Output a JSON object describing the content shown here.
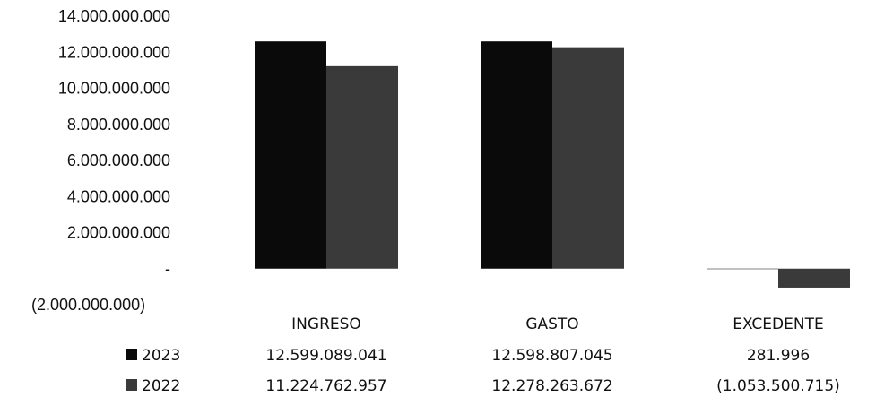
{
  "chart_data": {
    "type": "bar",
    "categories": [
      "INGRESO",
      "GASTO",
      "EXCEDENTE"
    ],
    "series": [
      {
        "name": "2023",
        "values": [
          12599089041,
          12598807045,
          281996
        ],
        "labels": [
          "12.599.089.041",
          "12.598.807.045",
          "281.996"
        ],
        "color": "#0a0a0a"
      },
      {
        "name": "2022",
        "values": [
          11224762957,
          12278263672,
          -1053500715
        ],
        "labels": [
          "11.224.762.957",
          "12.278.263.672",
          "(1.053.500.715)"
        ],
        "color": "#3a3a3a"
      }
    ],
    "y_ticks": [
      {
        "value": 14000000000,
        "label": "14.000.000.000"
      },
      {
        "value": 12000000000,
        "label": "12.000.000.000"
      },
      {
        "value": 10000000000,
        "label": "10.000.000.000"
      },
      {
        "value": 8000000000,
        "label": "8.000.000.000"
      },
      {
        "value": 6000000000,
        "label": "6.000.000.000"
      },
      {
        "value": 4000000000,
        "label": "4.000.000.000"
      },
      {
        "value": 2000000000,
        "label": "2.000.000.000"
      },
      {
        "value": 0,
        "label": "-"
      },
      {
        "value": -2000000000,
        "label": "(2.000.000.000)"
      }
    ],
    "ylim": [
      -2000000000,
      14000000000
    ],
    "title": "",
    "xlabel": "",
    "ylabel": "",
    "legend": "data-table-bottom",
    "grid": false
  }
}
